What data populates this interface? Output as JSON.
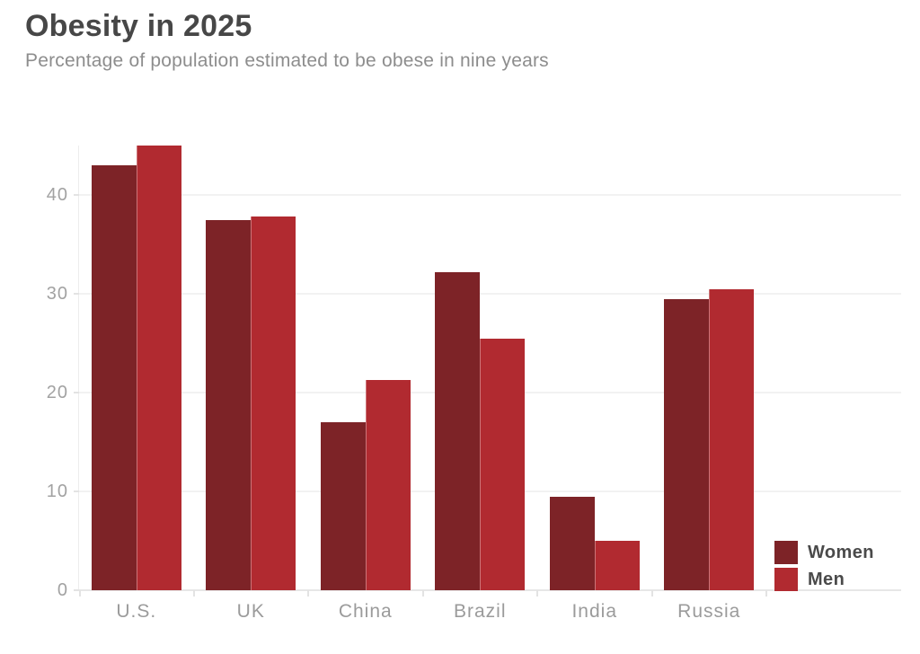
{
  "header": {
    "title": "Obesity in 2025",
    "subtitle": "Percentage of population estimated to be obese in nine years"
  },
  "chart_data": {
    "type": "bar",
    "title": "Obesity in 2025",
    "subtitle": "Percentage of population estimated to be obese in nine years",
    "categories": [
      "U.S.",
      "UK",
      "China",
      "Brazil",
      "India",
      "Russia"
    ],
    "series": [
      {
        "name": "Women",
        "color": "#7d2327",
        "values": [
          43,
          37.5,
          17,
          32.2,
          9.5,
          29.5
        ]
      },
      {
        "name": "Men",
        "color": "#b12a30",
        "values": [
          45,
          37.8,
          21.3,
          25.5,
          5,
          30.5
        ]
      }
    ],
    "xlabel": "",
    "ylabel": "",
    "ylim": [
      0,
      45
    ],
    "yticks": [
      0,
      10,
      20,
      30,
      40
    ],
    "grid": true,
    "legend_position": "bottom-right",
    "colors": {
      "title": "#474747",
      "subtitle": "#8d8d8d",
      "axis_labels": "#9b9b9b",
      "gridline": "#f2f2f2",
      "axis_line": "#e7e7e7",
      "background": "#ffffff"
    }
  }
}
